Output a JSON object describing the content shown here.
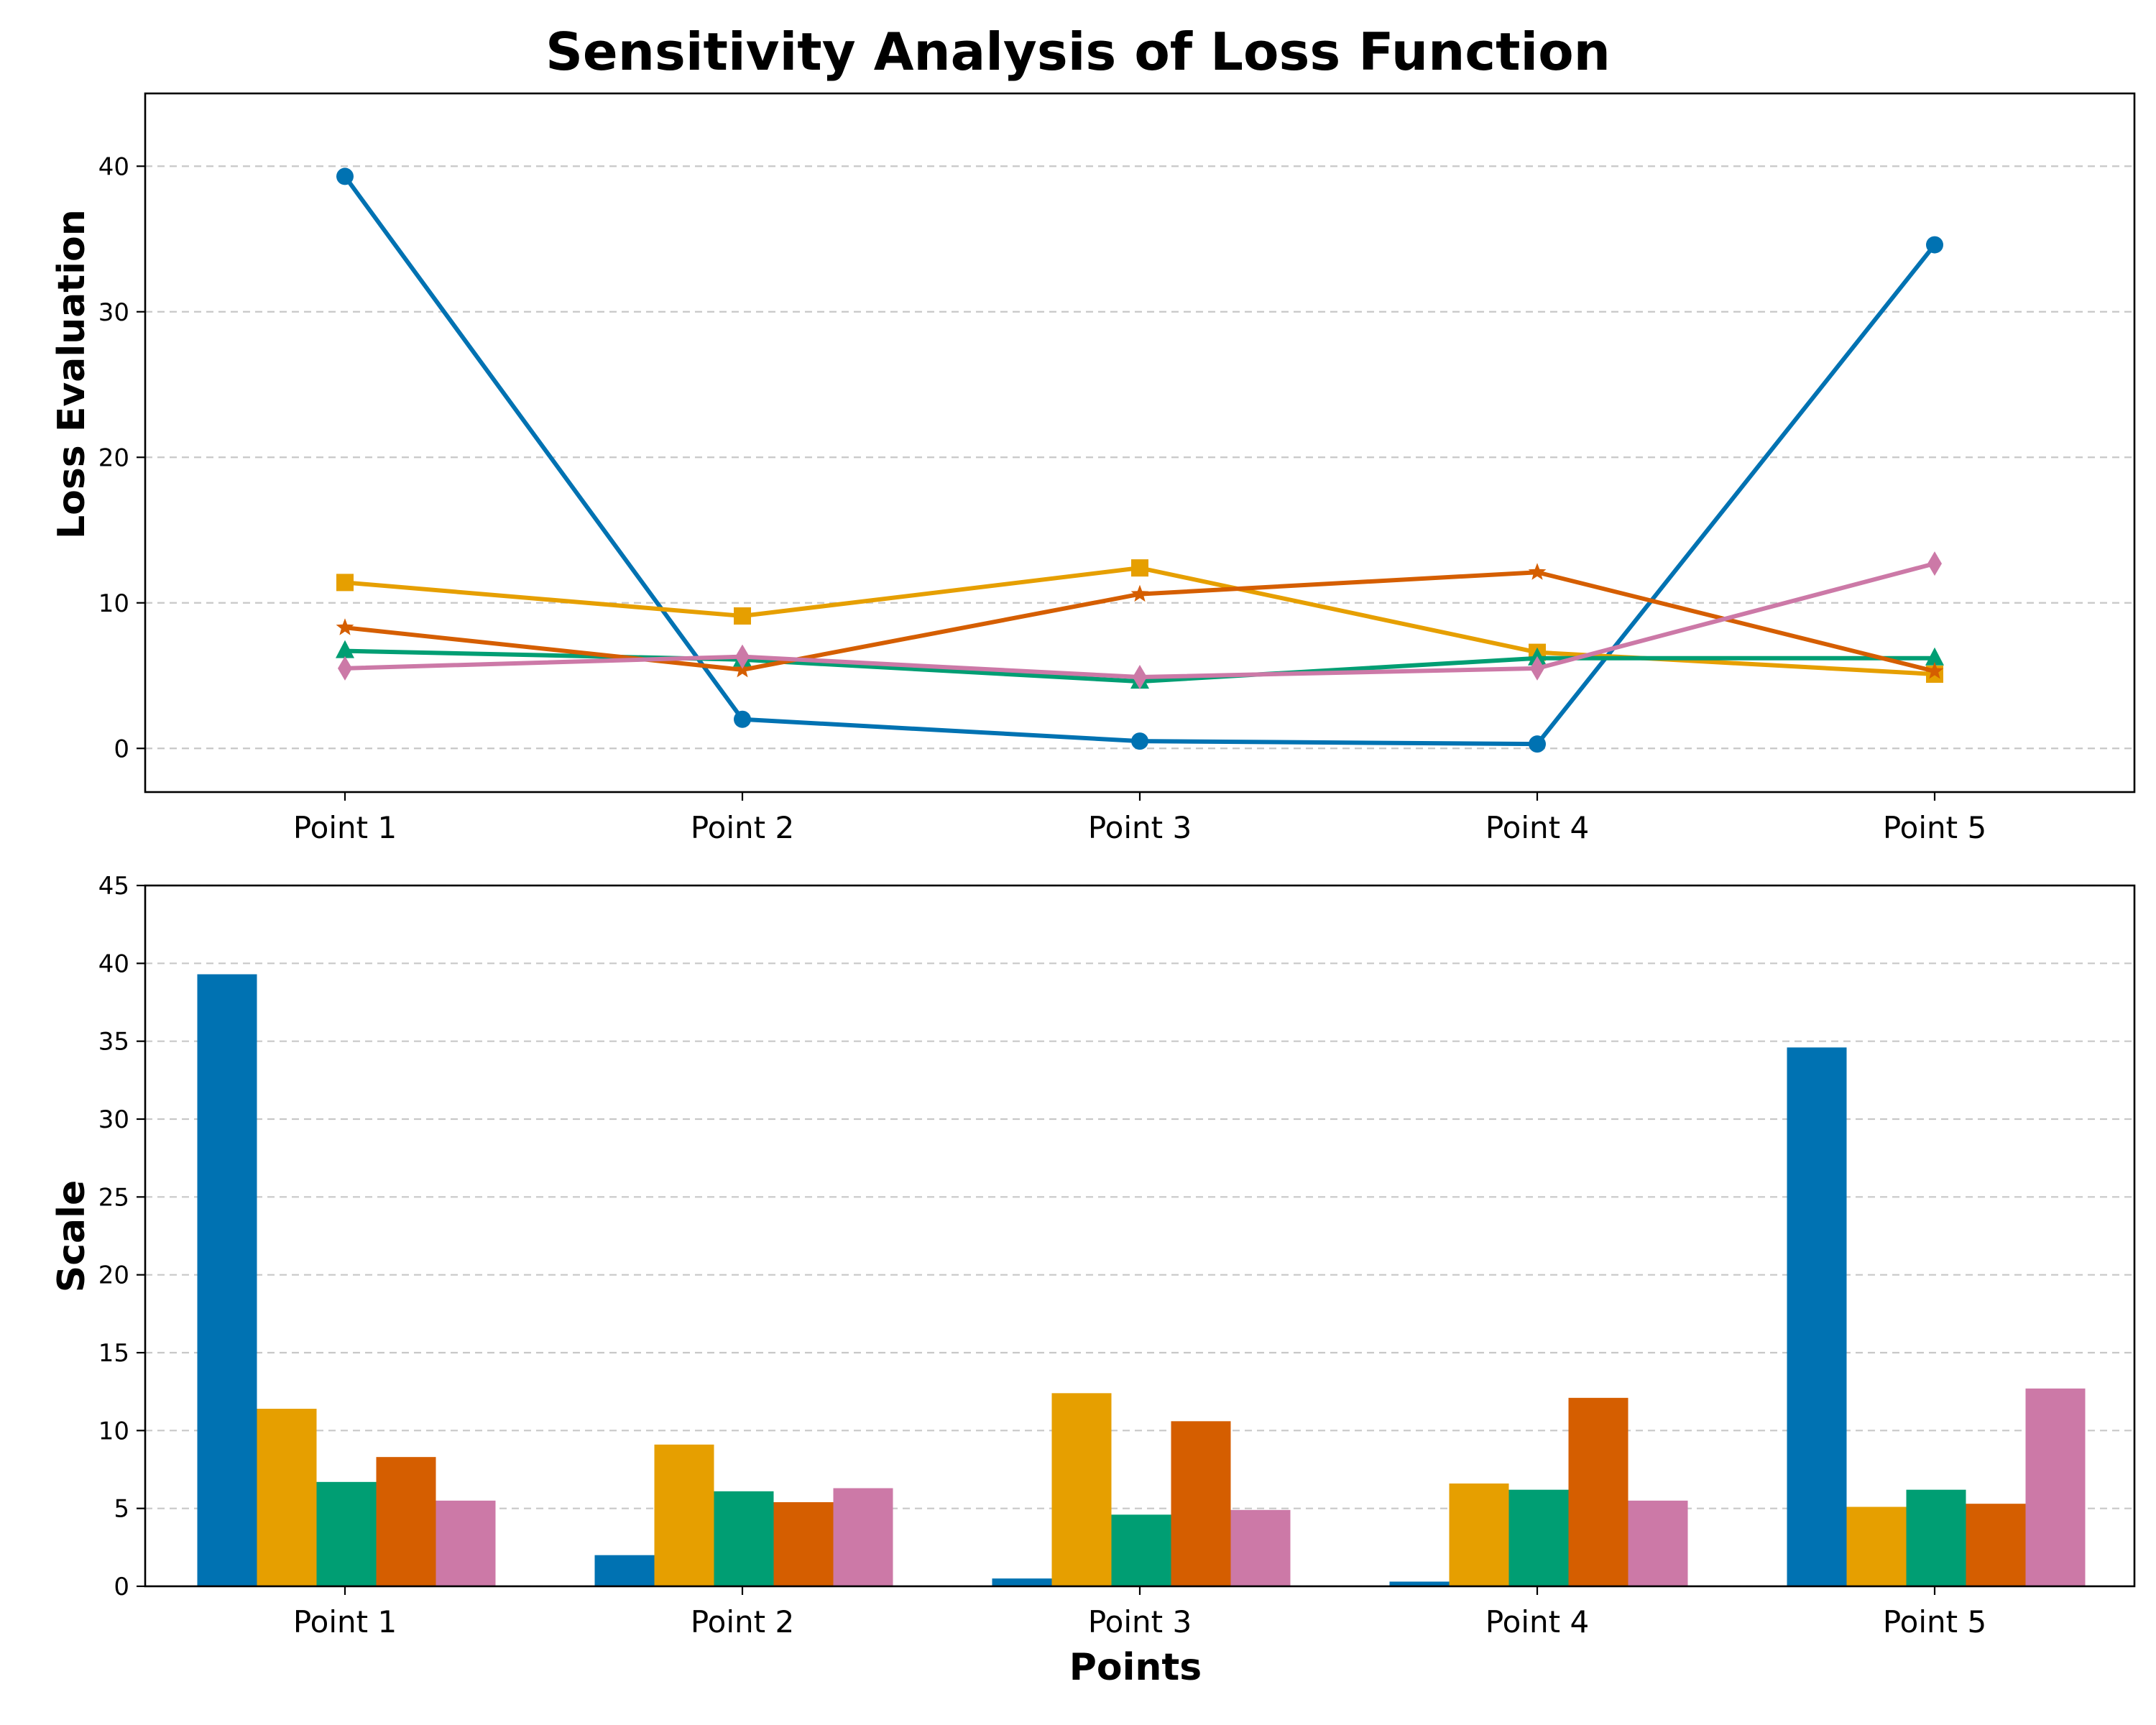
{
  "chart_data": [
    {
      "type": "line",
      "title": "Sensitivity Analysis of Loss Function",
      "xlabel": "",
      "ylabel": "Loss Evaluation",
      "categories": [
        "Point 1",
        "Point 2",
        "Point 3",
        "Point 4",
        "Point 5"
      ],
      "ylim": [
        -3,
        45
      ],
      "yticks": [
        0,
        10,
        20,
        30,
        40
      ],
      "grid": true,
      "series": [
        {
          "color": "#0072B2",
          "marker": "circle",
          "values": [
            39.3,
            2.0,
            0.5,
            0.3,
            34.6
          ]
        },
        {
          "color": "#E69F00",
          "marker": "square",
          "values": [
            11.4,
            9.1,
            12.4,
            6.6,
            5.1
          ]
        },
        {
          "color": "#009E73",
          "marker": "triangle",
          "values": [
            6.7,
            6.1,
            4.6,
            6.2,
            6.2
          ]
        },
        {
          "color": "#D55E00",
          "marker": "star",
          "values": [
            8.3,
            5.4,
            10.6,
            12.1,
            5.3
          ]
        },
        {
          "color": "#CC79A7",
          "marker": "diamond",
          "values": [
            5.5,
            6.3,
            4.9,
            5.5,
            12.7
          ]
        }
      ]
    },
    {
      "type": "bar",
      "title": "",
      "xlabel": "Points",
      "ylabel": "Scale",
      "categories": [
        "Point 1",
        "Point 2",
        "Point 3",
        "Point 4",
        "Point 5"
      ],
      "ylim": [
        0,
        45
      ],
      "yticks": [
        0,
        5,
        10,
        15,
        20,
        25,
        30,
        35,
        40,
        45
      ],
      "grid": true,
      "series": [
        {
          "color": "#0072B2",
          "values": [
            39.3,
            2.0,
            0.5,
            0.3,
            34.6
          ]
        },
        {
          "color": "#E69F00",
          "values": [
            11.4,
            9.1,
            12.4,
            6.6,
            5.1
          ]
        },
        {
          "color": "#009E73",
          "values": [
            6.7,
            6.1,
            4.6,
            6.2,
            6.2
          ]
        },
        {
          "color": "#D55E00",
          "values": [
            8.3,
            5.4,
            10.6,
            12.1,
            5.3
          ]
        },
        {
          "color": "#CC79A7",
          "values": [
            5.5,
            6.3,
            4.9,
            5.5,
            12.7
          ]
        }
      ]
    }
  ]
}
